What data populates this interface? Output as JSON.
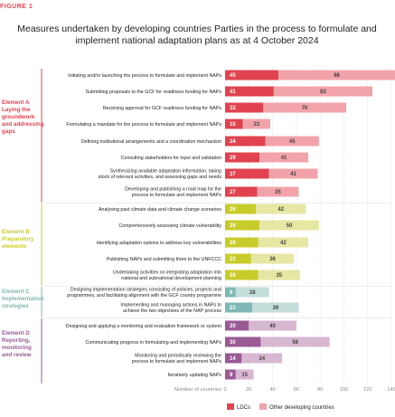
{
  "figure_label": "FIGURE 1",
  "chart_data": {
    "type": "bar",
    "orientation": "horizontal",
    "stacked": true,
    "title": "Measures undertaken by developing countries Parties in the process to formulate and implement national adaptation plans as at 4 October 2024",
    "xlabel": "Number of countries",
    "xlim": [
      0,
      140
    ],
    "xticks": [
      0,
      20,
      40,
      60,
      80,
      100,
      120,
      140
    ],
    "legend": {
      "position": "bottom",
      "ldc": "LDCs",
      "other": "Other developing countries"
    },
    "groups": [
      {
        "lines": [
          "Element A",
          "Laying the",
          "groundwork",
          "and addressing",
          "gaps"
        ],
        "color": "#e0434f",
        "light": "#f2a3aa",
        "rows": [
          {
            "label": [
              "Initiating and/or launching the process to formulate and implement NAPs"
            ],
            "ldc": 45,
            "other": 98
          },
          {
            "label": [
              "Submitting proposals to the GCF for readiness funding for NAPs"
            ],
            "ldc": 41,
            "other": 83
          },
          {
            "label": [
              "Receiving approval for GCF readiness funding for NAPs"
            ],
            "ldc": 32,
            "other": 70
          },
          {
            "label": [
              "Formulating a mandate for the process to formulate and implement NAPs"
            ],
            "ldc": 15,
            "other": 23
          },
          {
            "label": [
              "Defining institutional arrangements and a coordination mechanism"
            ],
            "ldc": 34,
            "other": 45
          },
          {
            "label": [
              "Consulting stakeholders for input and validation"
            ],
            "ldc": 29,
            "other": 41
          },
          {
            "label": [
              "Synthesizing available adaptation information, taking",
              "stock of relevant activities, and assessing gaps and needs"
            ],
            "ldc": 37,
            "other": 41
          },
          {
            "label": [
              "Developing and publishing a road map for the",
              "process to formulate and implement NAPs"
            ],
            "ldc": 27,
            "other": 35
          }
        ]
      },
      {
        "lines": [
          "Element B",
          "Preparatory",
          "elements"
        ],
        "color": "#c8cc2a",
        "light": "#e6e7a3",
        "rows": [
          {
            "label": [
              "Analysing past climate data and climate change scenarios"
            ],
            "ldc": 26,
            "other": 42
          },
          {
            "label": [
              "Comprehensively assessing climate vulnerability"
            ],
            "ldc": 29,
            "other": 50
          },
          {
            "label": [
              "Identifying adaptation options to address key vulnerabilities"
            ],
            "ldc": 28,
            "other": 42
          },
          {
            "label": [
              "Publishing NAPs and submitting them to the UNFCCC"
            ],
            "ldc": 22,
            "other": 36
          },
          {
            "label": [
              "Undertaking activities on integrating adaptation into",
              "national and subnational development planning"
            ],
            "ldc": 28,
            "other": 35
          }
        ]
      },
      {
        "lines": [
          "Element C",
          "Implementation",
          "strategies"
        ],
        "color": "#7fb8b4",
        "light": "#c3dedb",
        "rows": [
          {
            "label": [
              "Designing implementation strategies consisting of policies, projects and",
              "programmes, and facilitating alignment with the GCF country programme"
            ],
            "ldc": 9,
            "other": 28
          },
          {
            "label": [
              "Implementing and managing actions in NAPs to",
              "achieve the two objectives of the NAP process"
            ],
            "ldc": 23,
            "other": 39
          }
        ]
      },
      {
        "lines": [
          "Element D",
          "Reporting,",
          "monitoring",
          "and review"
        ],
        "color": "#9a5a96",
        "light": "#d8b7d3",
        "rows": [
          {
            "label": [
              "Designing and applying a monitoring and evaluation framework or system"
            ],
            "ldc": 20,
            "other": 40
          },
          {
            "label": [
              "Communicating progress in formulating and implementing NAPs"
            ],
            "ldc": 30,
            "other": 58
          },
          {
            "label": [
              "Monitoring and periodically reviewing the",
              "process to formulate and implement NAPs"
            ],
            "ldc": 14,
            "other": 34
          },
          {
            "label": [
              "Iteratively updating NAPs"
            ],
            "ldc": 9,
            "other": 15
          }
        ]
      }
    ]
  }
}
